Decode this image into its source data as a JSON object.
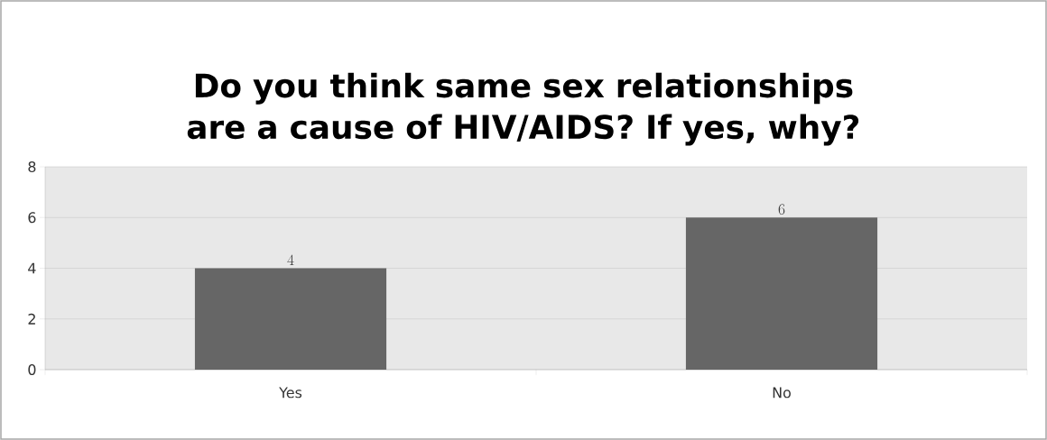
{
  "chart_data": {
    "type": "bar",
    "title": "Do you think same sex relationships are a cause of HIV/AIDS? If yes, why?",
    "categories": [
      "Yes",
      "No"
    ],
    "values": [
      4,
      6
    ],
    "color": "#666666",
    "ylim": [
      0,
      8
    ],
    "yticks": [
      0,
      2,
      4,
      6,
      8
    ],
    "grid": "y",
    "data_labels": true
  }
}
